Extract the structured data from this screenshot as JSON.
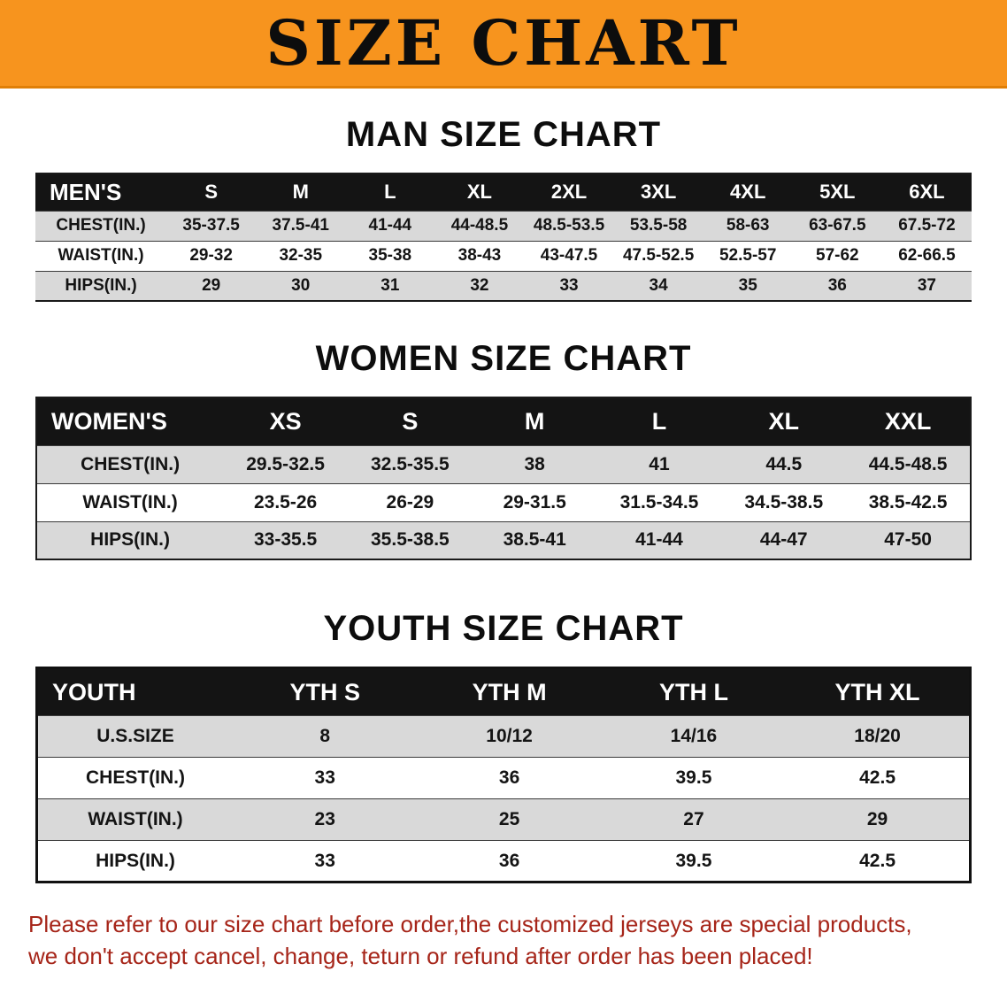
{
  "banner": {
    "title": "SIZE CHART",
    "bg_color": "#f7941e",
    "text_color": "#0d0d0d"
  },
  "chart_data": [
    {
      "type": "table",
      "heading": "MAN SIZE CHART",
      "header": [
        "MEN'S",
        "S",
        "M",
        "L",
        "XL",
        "2XL",
        "3XL",
        "4XL",
        "5XL",
        "6XL"
      ],
      "rows": [
        [
          "CHEST(IN.)",
          "35-37.5",
          "37.5-41",
          "41-44",
          "44-48.5",
          "48.5-53.5",
          "53.5-58",
          "58-63",
          "63-67.5",
          "67.5-72"
        ],
        [
          "WAIST(IN.)",
          "29-32",
          "32-35",
          "35-38",
          "38-43",
          "43-47.5",
          "47.5-52.5",
          "52.5-57",
          "57-62",
          "62-66.5"
        ],
        [
          "HIPS(IN.)",
          "29",
          "30",
          "31",
          "32",
          "33",
          "34",
          "35",
          "36",
          "37"
        ]
      ]
    },
    {
      "type": "table",
      "heading": "WOMEN SIZE CHART",
      "header": [
        "WOMEN'S",
        "XS",
        "S",
        "M",
        "L",
        "XL",
        "XXL"
      ],
      "rows": [
        [
          "CHEST(IN.)",
          "29.5-32.5",
          "32.5-35.5",
          "38",
          "41",
          "44.5",
          "44.5-48.5"
        ],
        [
          "WAIST(IN.)",
          "23.5-26",
          "26-29",
          "29-31.5",
          "31.5-34.5",
          "34.5-38.5",
          "38.5-42.5"
        ],
        [
          "HIPS(IN.)",
          "33-35.5",
          "35.5-38.5",
          "38.5-41",
          "41-44",
          "44-47",
          "47-50"
        ]
      ]
    },
    {
      "type": "table",
      "heading": "YOUTH SIZE CHART",
      "header": [
        "YOUTH",
        "YTH S",
        "YTH M",
        "YTH L",
        "YTH XL"
      ],
      "rows": [
        [
          "U.S.SIZE",
          "8",
          "10/12",
          "14/16",
          "18/20"
        ],
        [
          "CHEST(IN.)",
          "33",
          "36",
          "39.5",
          "42.5"
        ],
        [
          "WAIST(IN.)",
          "23",
          "25",
          "27",
          "29"
        ],
        [
          "HIPS(IN.)",
          "33",
          "36",
          "39.5",
          "42.5"
        ]
      ]
    }
  ],
  "footer": {
    "line1": "Please refer to our size chart before order,the customized jerseys are special products,",
    "line2": "we don't accept cancel, change, teturn or refund after order has been placed!",
    "text_color": "#a62519"
  }
}
